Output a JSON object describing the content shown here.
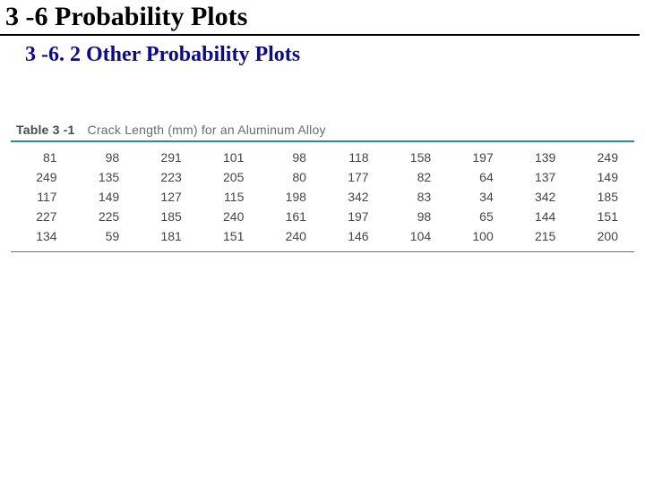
{
  "headings": {
    "main": "3 -6   Probability Plots",
    "sub": "3 -6. 2 Other Probability Plots"
  },
  "table": {
    "number_label": "Table 3 -1",
    "caption": "Crack Length (mm) for an Aluminum Alloy",
    "rows": [
      [
        81,
        98,
        291,
        101,
        98,
        118,
        158,
        197,
        139,
        249
      ],
      [
        249,
        135,
        223,
        205,
        80,
        177,
        82,
        64,
        137,
        149
      ],
      [
        117,
        149,
        127,
        115,
        198,
        342,
        83,
        34,
        342,
        185
      ],
      [
        227,
        225,
        185,
        240,
        161,
        197,
        98,
        65,
        144,
        151
      ],
      [
        134,
        59,
        181,
        151,
        240,
        146,
        104,
        100,
        215,
        200
      ]
    ],
    "n_cols": 10,
    "rule_color": "#2e8e8e",
    "cell_fontsize": 14,
    "cell_color": "#444444"
  },
  "styling": {
    "main_heading_color": "#000000",
    "main_heading_fontsize": 30,
    "sub_heading_color": "#0b0b8c",
    "sub_heading_fontsize": 24,
    "background_color": "#ffffff",
    "table_label_color": "#4a4a4a",
    "table_caption_color": "#6a6a6a"
  }
}
